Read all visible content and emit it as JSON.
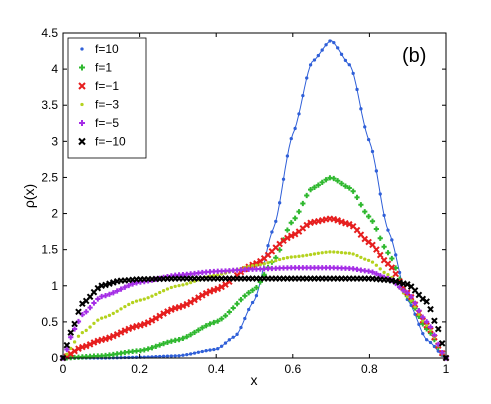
{
  "chart_data": {
    "type": "scatter",
    "panel_label": "(b)",
    "xlabel": "x",
    "ylabel": "ρ(x)",
    "xlim": [
      0,
      1
    ],
    "ylim": [
      0,
      4.5
    ],
    "xticks": [
      0,
      0.2,
      0.4,
      0.6,
      0.8,
      1
    ],
    "xtick_labels": [
      "0",
      "0.2",
      "0.4",
      "0.6",
      "0.8",
      "1"
    ],
    "yticks": [
      0,
      0.5,
      1,
      1.5,
      2,
      2.5,
      3,
      3.5,
      4,
      4.5
    ],
    "ytick_labels": [
      "0",
      "0.5",
      "1",
      "1.5",
      "2",
      "2.5",
      "3",
      "3.5",
      "4",
      "4.5"
    ],
    "grid": false,
    "legend_position": "top-left",
    "series": [
      {
        "name": "f=10",
        "color": "#2f5fd8",
        "marker": "dot",
        "line": true,
        "x": [
          0,
          0.1,
          0.2,
          0.3,
          0.4,
          0.45,
          0.5,
          0.55,
          0.6,
          0.65,
          0.7,
          0.75,
          0.8,
          0.85,
          0.9,
          0.95,
          1
        ],
        "y": [
          0,
          0,
          0.01,
          0.03,
          0.12,
          0.3,
          0.8,
          1.8,
          3.1,
          4.1,
          4.4,
          4.05,
          3.0,
          1.75,
          0.8,
          0.25,
          0
        ]
      },
      {
        "name": "f=1",
        "color": "#2fb82f",
        "marker": "plus",
        "line": false,
        "x": [
          0,
          0.1,
          0.2,
          0.3,
          0.4,
          0.5,
          0.55,
          0.6,
          0.65,
          0.7,
          0.75,
          0.8,
          0.85,
          0.9,
          0.95,
          1
        ],
        "y": [
          0,
          0.03,
          0.1,
          0.25,
          0.5,
          0.95,
          1.35,
          1.9,
          2.35,
          2.5,
          2.35,
          1.95,
          1.45,
          0.85,
          0.4,
          0
        ]
      },
      {
        "name": "f=−1",
        "color": "#e61e1e",
        "marker": "x",
        "line": false,
        "x": [
          0,
          0.05,
          0.1,
          0.2,
          0.3,
          0.4,
          0.5,
          0.6,
          0.65,
          0.7,
          0.75,
          0.8,
          0.85,
          0.9,
          0.95,
          1
        ],
        "y": [
          0,
          0.15,
          0.25,
          0.45,
          0.7,
          0.95,
          1.3,
          1.7,
          1.88,
          1.93,
          1.85,
          1.6,
          1.3,
          0.9,
          0.45,
          0
        ]
      },
      {
        "name": "f=−3",
        "color": "#b4d21e",
        "marker": "dot",
        "line": false,
        "x": [
          0,
          0.05,
          0.1,
          0.2,
          0.3,
          0.4,
          0.5,
          0.6,
          0.7,
          0.75,
          0.8,
          0.85,
          0.9,
          0.95,
          1
        ],
        "y": [
          0,
          0.35,
          0.55,
          0.8,
          1.0,
          1.15,
          1.28,
          1.4,
          1.47,
          1.45,
          1.35,
          1.15,
          0.85,
          0.45,
          0
        ]
      },
      {
        "name": "f=−5",
        "color": "#a52ee6",
        "marker": "plus",
        "line": false,
        "x": [
          0,
          0.03,
          0.05,
          0.1,
          0.2,
          0.3,
          0.4,
          0.5,
          0.6,
          0.7,
          0.75,
          0.8,
          0.85,
          0.9,
          0.95,
          1
        ],
        "y": [
          0,
          0.4,
          0.6,
          0.85,
          1.05,
          1.15,
          1.2,
          1.23,
          1.25,
          1.25,
          1.24,
          1.2,
          1.1,
          0.9,
          0.5,
          0
        ]
      },
      {
        "name": "f=−10",
        "color": "#000000",
        "marker": "x",
        "line": false,
        "x": [
          0,
          0.02,
          0.05,
          0.1,
          0.15,
          0.2,
          0.3,
          0.4,
          0.5,
          0.6,
          0.7,
          0.8,
          0.85,
          0.9,
          0.95,
          0.98,
          1
        ],
        "y": [
          0,
          0.35,
          0.75,
          1.0,
          1.07,
          1.09,
          1.1,
          1.1,
          1.1,
          1.1,
          1.1,
          1.1,
          1.08,
          1.02,
          0.78,
          0.4,
          0
        ]
      }
    ]
  }
}
